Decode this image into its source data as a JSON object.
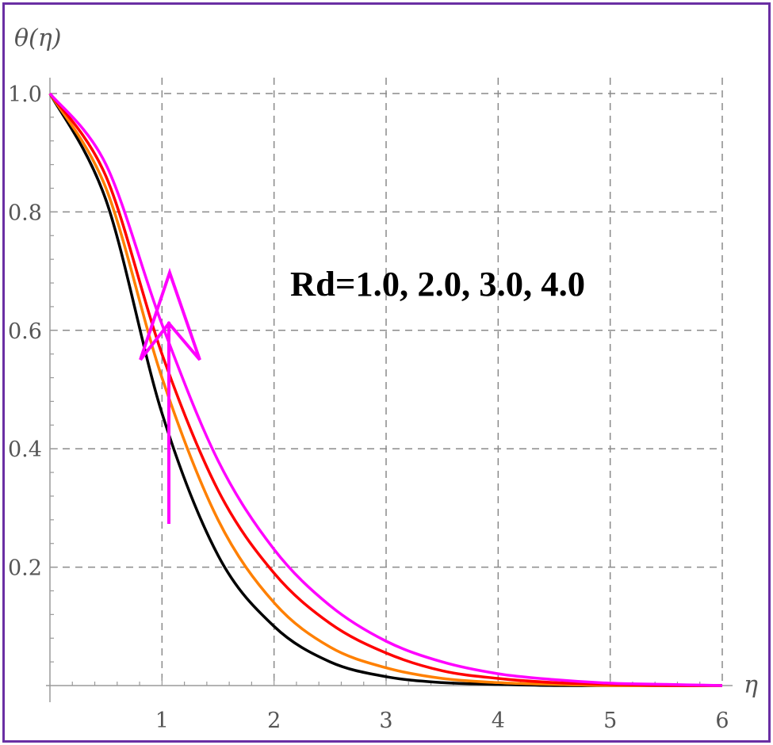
{
  "chart_data": {
    "type": "line",
    "title": "",
    "xlabel": "η",
    "ylabel": "θ(η)",
    "xlim": [
      0,
      6
    ],
    "ylim": [
      0,
      1
    ],
    "grid": true,
    "x_ticks": [
      "1",
      "2",
      "3",
      "4",
      "5",
      "6"
    ],
    "y_ticks": [
      "0.2",
      "0.4",
      "0.6",
      "0.8",
      "1.0"
    ],
    "annotation": "Rd=1.0, 2.0, 3.0, 4.0",
    "arrow": {
      "direction": "up",
      "color": "#ff00ff"
    },
    "x": [
      0,
      0.5,
      1,
      1.5,
      2,
      2.5,
      3,
      3.5,
      4,
      4.5,
      5,
      5.5,
      6
    ],
    "series": [
      {
        "color": "#000000",
        "values": [
          1.0,
          0.82,
          0.46,
          0.22,
          0.1,
          0.04,
          0.015,
          0.005,
          0.002,
          0.0,
          0.0,
          0.0,
          0.0
        ]
      },
      {
        "color": "#ff8000",
        "values": [
          1.0,
          0.84,
          0.52,
          0.28,
          0.14,
          0.065,
          0.03,
          0.012,
          0.005,
          0.002,
          0.0,
          0.0,
          0.0
        ]
      },
      {
        "color": "#ff0000",
        "values": [
          1.0,
          0.86,
          0.56,
          0.33,
          0.19,
          0.105,
          0.055,
          0.025,
          0.012,
          0.005,
          0.002,
          0.0,
          0.0
        ]
      },
      {
        "color": "#ff00ff",
        "values": [
          1.0,
          0.88,
          0.61,
          0.38,
          0.23,
          0.135,
          0.075,
          0.04,
          0.02,
          0.01,
          0.004,
          0.002,
          0.0
        ]
      }
    ]
  }
}
